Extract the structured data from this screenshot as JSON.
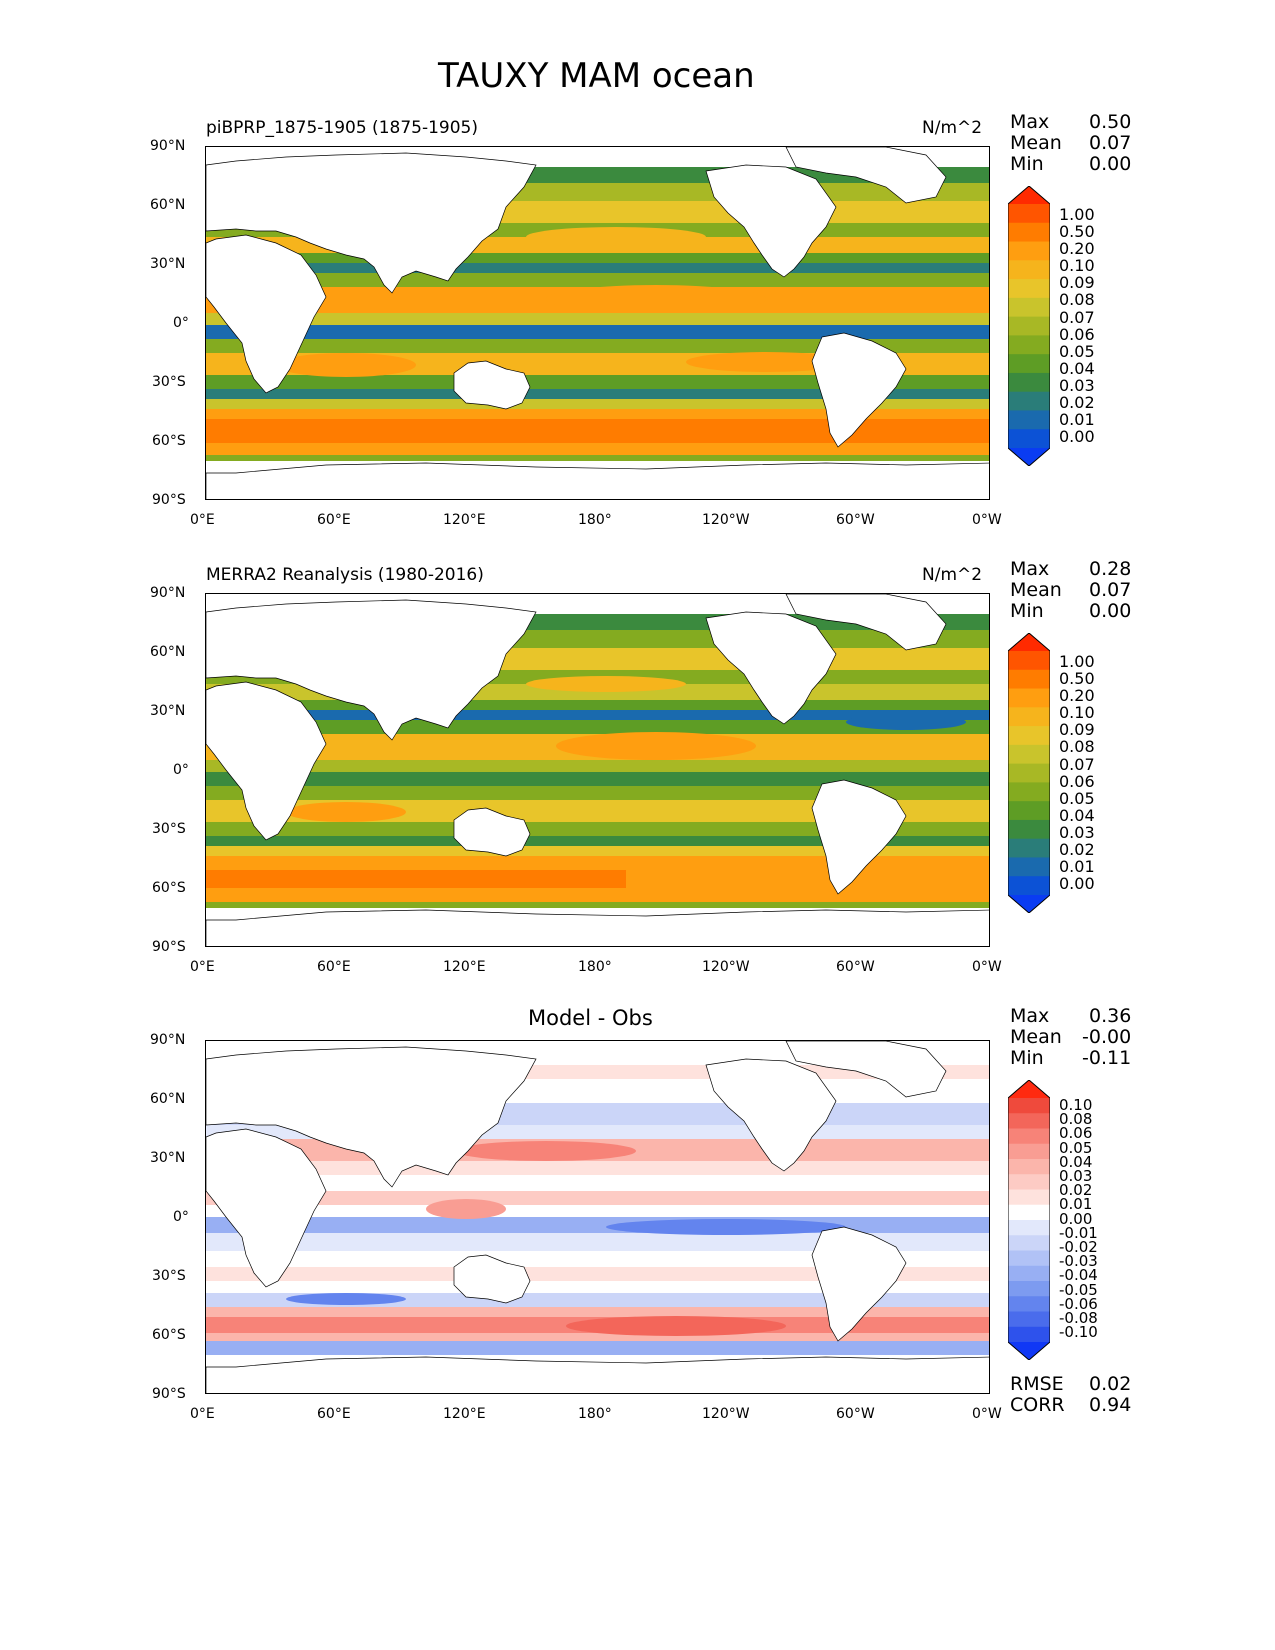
{
  "figure": {
    "title": "TAUXY MAM ocean"
  },
  "panels": [
    {
      "id": "model",
      "left_title": "piBPRP_1875-1905 (1875-1905)",
      "units": "N/m^2",
      "center_title": "",
      "stats": [
        {
          "label": "Max",
          "value": "0.50"
        },
        {
          "label": "Mean",
          "value": "0.07"
        },
        {
          "label": "Min",
          "value": "0.00"
        }
      ],
      "colorbar": {
        "labels": [
          "1.00",
          "0.50",
          "0.20",
          "0.10",
          "0.09",
          "0.08",
          "0.07",
          "0.06",
          "0.05",
          "0.04",
          "0.03",
          "0.02",
          "0.01",
          "0.00"
        ],
        "colors": [
          "#ff2a00",
          "#ff5500",
          "#ff7c00",
          "#ff9e10",
          "#f6b41c",
          "#e8c52a",
          "#c9c42c",
          "#a8b825",
          "#84ab20",
          "#5e9d25",
          "#3b8a3e",
          "#2a7d79",
          "#1a6aae",
          "#0c52d6",
          "#0a3cf2"
        ]
      }
    },
    {
      "id": "obs",
      "left_title": "MERRA2 Reanalysis (1980-2016)",
      "units": "N/m^2",
      "center_title": "",
      "stats": [
        {
          "label": "Max",
          "value": "0.28"
        },
        {
          "label": "Mean",
          "value": "0.07"
        },
        {
          "label": "Min",
          "value": "0.00"
        }
      ],
      "colorbar": {
        "labels": [
          "1.00",
          "0.50",
          "0.20",
          "0.10",
          "0.09",
          "0.08",
          "0.07",
          "0.06",
          "0.05",
          "0.04",
          "0.03",
          "0.02",
          "0.01",
          "0.00"
        ],
        "colors": [
          "#ff2a00",
          "#ff5500",
          "#ff7c00",
          "#ff9e10",
          "#f6b41c",
          "#e8c52a",
          "#c9c42c",
          "#a8b825",
          "#84ab20",
          "#5e9d25",
          "#3b8a3e",
          "#2a7d79",
          "#1a6aae",
          "#0c52d6",
          "#0a3cf2"
        ]
      }
    },
    {
      "id": "diff",
      "left_title": "",
      "units": "",
      "center_title": "Model - Obs",
      "stats": [
        {
          "label": "Max",
          "value": "0.36"
        },
        {
          "label": "Mean",
          "value": "-0.00"
        },
        {
          "label": "Min",
          "value": "-0.11"
        }
      ],
      "extra_stats": [
        {
          "label": "RMSE",
          "value": "0.02"
        },
        {
          "label": "CORR",
          "value": "0.94"
        }
      ],
      "colorbar": {
        "labels": [
          "0.10",
          "0.08",
          "0.06",
          "0.05",
          "0.04",
          "0.03",
          "0.02",
          "0.01",
          "0.00",
          "-0.01",
          "-0.02",
          "-0.03",
          "-0.04",
          "-0.05",
          "-0.06",
          "-0.08",
          "-0.10"
        ],
        "colors": [
          "#ff2a10",
          "#ef4a3c",
          "#f3665a",
          "#f78378",
          "#f99d93",
          "#fbb5ab",
          "#fdcbc4",
          "#fee2dd",
          "#ffffff",
          "#e2e8fb",
          "#cbd5f8",
          "#b1c2f6",
          "#98aff3",
          "#7d9bf0",
          "#6384ee",
          "#4a6cec",
          "#2e52ec",
          "#1038f5"
        ]
      }
    }
  ],
  "axes": {
    "x_ticks": [
      "0°E",
      "60°E",
      "120°E",
      "180°",
      "120°W",
      "60°W",
      "0°W"
    ],
    "y_ticks": [
      "90°N",
      "60°N",
      "30°N",
      "0°",
      "30°S",
      "60°S",
      "90°S"
    ]
  },
  "chart_data": [
    {
      "type": "heatmap",
      "title": "piBPRP_1875-1905 (1875-1905)",
      "units": "N/m^2",
      "xlim": [
        0,
        360
      ],
      "ylim": [
        -90,
        90
      ],
      "summary": {
        "max": 0.5,
        "mean": 0.07,
        "min": 0.0
      },
      "levels": [
        0.0,
        0.01,
        0.02,
        0.03,
        0.04,
        0.05,
        0.06,
        0.07,
        0.08,
        0.09,
        0.1,
        0.2,
        0.5,
        1.0
      ],
      "field_features": [
        {
          "name": "Southern Ocean westerly belt",
          "lat_center": -50,
          "lat_half_width": 10,
          "value": 0.15
        },
        {
          "name": "NH midlatitude westerlies",
          "lat_center": 45,
          "lat_half_width": 8,
          "value": 0.09
        },
        {
          "name": "NH trade winds",
          "lat_center": 15,
          "lat_half_width": 7,
          "value": 0.1
        },
        {
          "name": "SH trade winds",
          "lat_center": -15,
          "lat_half_width": 7,
          "value": 0.1
        },
        {
          "name": "Equatorial doldrums",
          "lat_center": 3,
          "lat_half_width": 4,
          "value": 0.02
        },
        {
          "name": "Subtropical calm belts",
          "lat_center": 32,
          "lat_half_width": 3,
          "value": 0.02
        }
      ]
    },
    {
      "type": "heatmap",
      "title": "MERRA2 Reanalysis (1980-2016)",
      "units": "N/m^2",
      "xlim": [
        0,
        360
      ],
      "ylim": [
        -90,
        90
      ],
      "summary": {
        "max": 0.28,
        "mean": 0.07,
        "min": 0.0
      },
      "levels": [
        0.0,
        0.01,
        0.02,
        0.03,
        0.04,
        0.05,
        0.06,
        0.07,
        0.08,
        0.09,
        0.1,
        0.2,
        0.5,
        1.0
      ],
      "field_features": [
        {
          "name": "Southern Ocean westerly belt",
          "lat_center": -50,
          "lat_half_width": 10,
          "value": 0.12
        },
        {
          "name": "NH midlatitude westerlies",
          "lat_center": 45,
          "lat_half_width": 8,
          "value": 0.09
        },
        {
          "name": "NH trade winds",
          "lat_center": 15,
          "lat_half_width": 7,
          "value": 0.1
        },
        {
          "name": "SH trade winds",
          "lat_center": -15,
          "lat_half_width": 7,
          "value": 0.09
        },
        {
          "name": "Equatorial doldrums",
          "lat_center": 3,
          "lat_half_width": 4,
          "value": 0.03
        }
      ]
    },
    {
      "type": "heatmap",
      "title": "Model - Obs",
      "xlim": [
        0,
        360
      ],
      "ylim": [
        -90,
        90
      ],
      "summary": {
        "max": 0.36,
        "mean": -0.0,
        "min": -0.11,
        "rmse": 0.02,
        "corr": 0.94
      },
      "levels": [
        -0.1,
        -0.08,
        -0.06,
        -0.05,
        -0.04,
        -0.03,
        -0.02,
        -0.01,
        0.0,
        0.01,
        0.02,
        0.03,
        0.04,
        0.05,
        0.06,
        0.08,
        0.1
      ],
      "field_features": [
        {
          "name": "Southern Ocean positive bias",
          "lat_center": -52,
          "lat_half_width": 6,
          "value": 0.03
        },
        {
          "name": "Antarctic margin negative bias",
          "lat_center": -63,
          "lat_half_width": 3,
          "value": -0.03
        },
        {
          "name": "Kuroshio extension positive bias",
          "lat_center": 33,
          "lat_half_width": 4,
          "value": 0.03
        },
        {
          "name": "Equatorial Pacific negative bias",
          "lat_center": 3,
          "lat_half_width": 4,
          "value": -0.02
        },
        {
          "name": "N Pacific midlatitude negative bias",
          "lat_center": 45,
          "lat_half_width": 5,
          "value": -0.02
        }
      ]
    }
  ]
}
